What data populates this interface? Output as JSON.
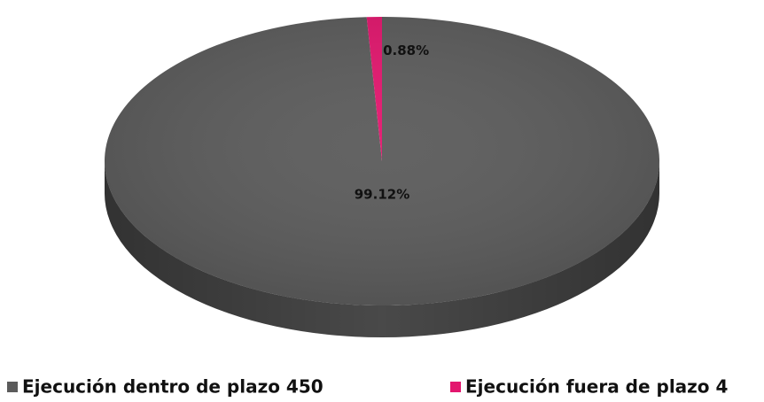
{
  "chart_data": {
    "type": "pie",
    "categories": [
      "Ejecución dentro de plazo 450",
      "Ejecución fuera de plazo 4"
    ],
    "values": [
      99.12,
      0.88
    ],
    "value_labels": [
      "99.12%",
      "0.88%"
    ],
    "colors": [
      "#5b5b5b",
      "#e3166e"
    ]
  }
}
